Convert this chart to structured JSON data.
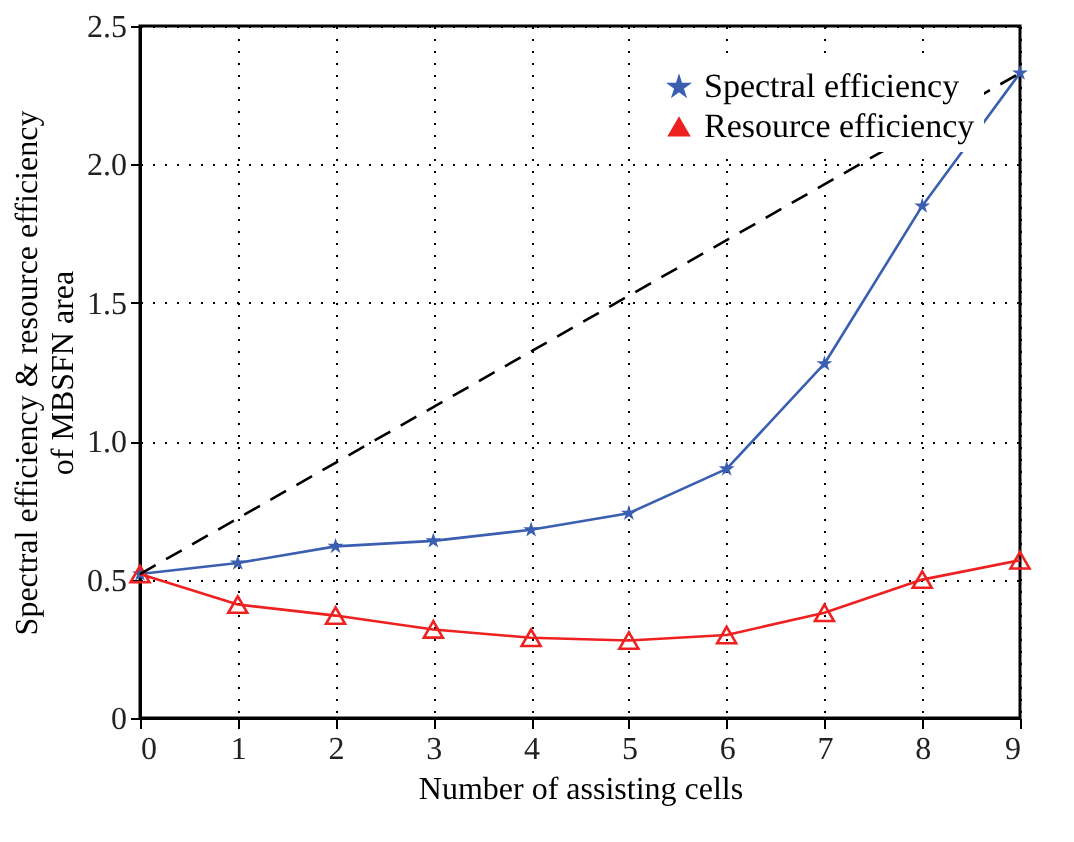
{
  "chart_data": {
    "type": "line",
    "xlabel": "Number of assisting cells",
    "ylabel": "Spectral efficiency & resource efficiency\nof MBSFN area",
    "x": [
      0,
      1,
      2,
      3,
      4,
      5,
      6,
      7,
      8,
      9
    ],
    "series": [
      {
        "name": "Spectral efficiency",
        "color": "#3a5fb0",
        "marker": "star",
        "values": [
          0.52,
          0.56,
          0.62,
          0.64,
          0.68,
          0.74,
          0.9,
          1.28,
          1.85,
          2.33
        ]
      },
      {
        "name": "Resource efficiency",
        "color": "#ee2020",
        "marker": "triangle",
        "values": [
          0.52,
          0.41,
          0.37,
          0.32,
          0.29,
          0.28,
          0.3,
          0.38,
          0.5,
          0.57
        ]
      },
      {
        "color": "#000000",
        "marker": "none",
        "line_style": "dashed",
        "x": [
          0,
          9
        ],
        "values": [
          0.52,
          2.33
        ]
      }
    ],
    "xlim": [
      0,
      9
    ],
    "xticks": [
      0,
      1,
      2,
      3,
      4,
      5,
      6,
      7,
      8,
      9
    ],
    "ylim": [
      0,
      2.5
    ],
    "yticks": [
      0,
      {
        "value": 0.5,
        "label": "0.5"
      },
      {
        "value": 1,
        "label": "1.0"
      },
      {
        "value": 1.5,
        "label": "1.5"
      },
      {
        "value": 2,
        "label": "2.0"
      },
      {
        "value": 2.5,
        "label": "2.5"
      }
    ],
    "grid": true,
    "legend": "top right",
    "line_style": "solid"
  }
}
